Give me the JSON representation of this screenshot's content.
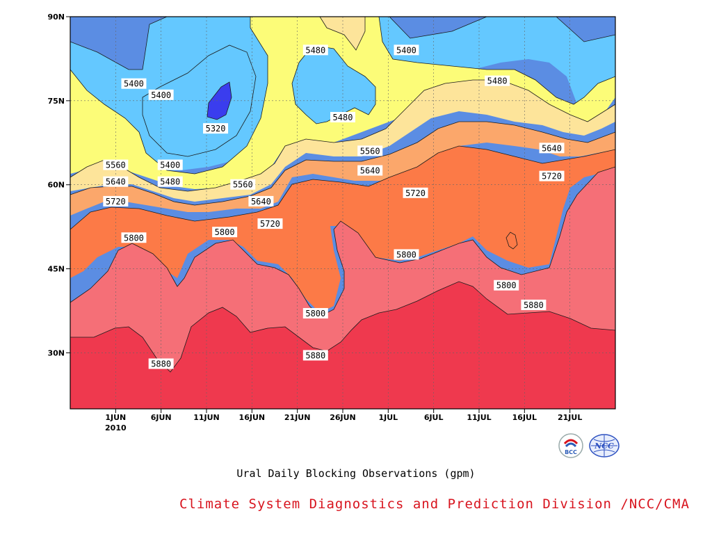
{
  "chart_data": {
    "type": "heatmap",
    "subtype": "filled-contour",
    "title": "Ural Daily Blocking Observations (gpm)",
    "x_ticks": [
      "1JUN",
      "6JUN",
      "11JUN",
      "16JUN",
      "21JUN",
      "26JUN",
      "1JUL",
      "6JUL",
      "11JUL",
      "16JUL",
      "21JUL"
    ],
    "x_year_label": "2010",
    "y_ticks": [
      "30N",
      "45N",
      "60N",
      "75N",
      "90N"
    ],
    "x_range": [
      "2010-05-27",
      "2010-07-26"
    ],
    "y_range": [
      "20N",
      "90N"
    ],
    "grid": true,
    "levels": [
      5320,
      5400,
      5480,
      5560,
      5640,
      5720,
      5800,
      5880
    ],
    "contour_labels": [
      {
        "value": "5480",
        "date": "2010-06-23",
        "lat": 84
      },
      {
        "value": "5400",
        "date": "2010-07-03",
        "lat": 84
      },
      {
        "value": "5400",
        "date": "2010-06-03",
        "lat": 78
      },
      {
        "value": "5400",
        "date": "2010-06-06",
        "lat": 76
      },
      {
        "value": "5480",
        "date": "2010-07-13",
        "lat": 78.5
      },
      {
        "value": "5320",
        "date": "2010-06-12",
        "lat": 70
      },
      {
        "value": "5480",
        "date": "2010-06-26",
        "lat": 72
      },
      {
        "value": "5560",
        "date": "2010-06-29",
        "lat": 66
      },
      {
        "value": "5640",
        "date": "2010-07-19",
        "lat": 66.5
      },
      {
        "value": "5560",
        "date": "2010-06-01",
        "lat": 63.5
      },
      {
        "value": "5400",
        "date": "2010-06-07",
        "lat": 63.5
      },
      {
        "value": "5640",
        "date": "2010-06-29",
        "lat": 62.5
      },
      {
        "value": "5480",
        "date": "2010-06-07",
        "lat": 60.5
      },
      {
        "value": "5560",
        "date": "2010-06-15",
        "lat": 60
      },
      {
        "value": "5720",
        "date": "2010-07-19",
        "lat": 61.5
      },
      {
        "value": "5640",
        "date": "2010-06-01",
        "lat": 60.5
      },
      {
        "value": "5720",
        "date": "2010-07-04",
        "lat": 58.5
      },
      {
        "value": "5640",
        "date": "2010-06-17",
        "lat": 57
      },
      {
        "value": "5720",
        "date": "2010-06-01",
        "lat": 57
      },
      {
        "value": "5720",
        "date": "2010-06-18",
        "lat": 53
      },
      {
        "value": "5800",
        "date": "2010-06-13",
        "lat": 51.5
      },
      {
        "value": "5800",
        "date": "2010-06-03",
        "lat": 50.5
      },
      {
        "value": "5800",
        "date": "2010-07-03",
        "lat": 47.5
      },
      {
        "value": "5800",
        "date": "2010-07-14",
        "lat": 42
      },
      {
        "value": "5880",
        "date": "2010-07-17",
        "lat": 38.5
      },
      {
        "value": "5800",
        "date": "2010-06-23",
        "lat": 37
      },
      {
        "value": "5880",
        "date": "2010-06-06",
        "lat": 28
      },
      {
        "value": "5880",
        "date": "2010-06-23",
        "lat": 29.5
      }
    ],
    "fill_colors": {
      "below_5320": "#3a3dee",
      "5320_5400": "#5b8de3",
      "5400_5480": "#64c8ff",
      "5480_5560": "#fcfc78",
      "5560_5640": "#fde49a",
      "5640_5720": "#fba76b",
      "5720_5800": "#fc7a47",
      "5800_5880": "#f56f77",
      "above_5880": "#ef394e"
    }
  },
  "footer": {
    "org": "Climate System Diagnostics and Prediction Division /NCC/CMA",
    "logo_left": "BCC",
    "logo_right": "NCC"
  }
}
